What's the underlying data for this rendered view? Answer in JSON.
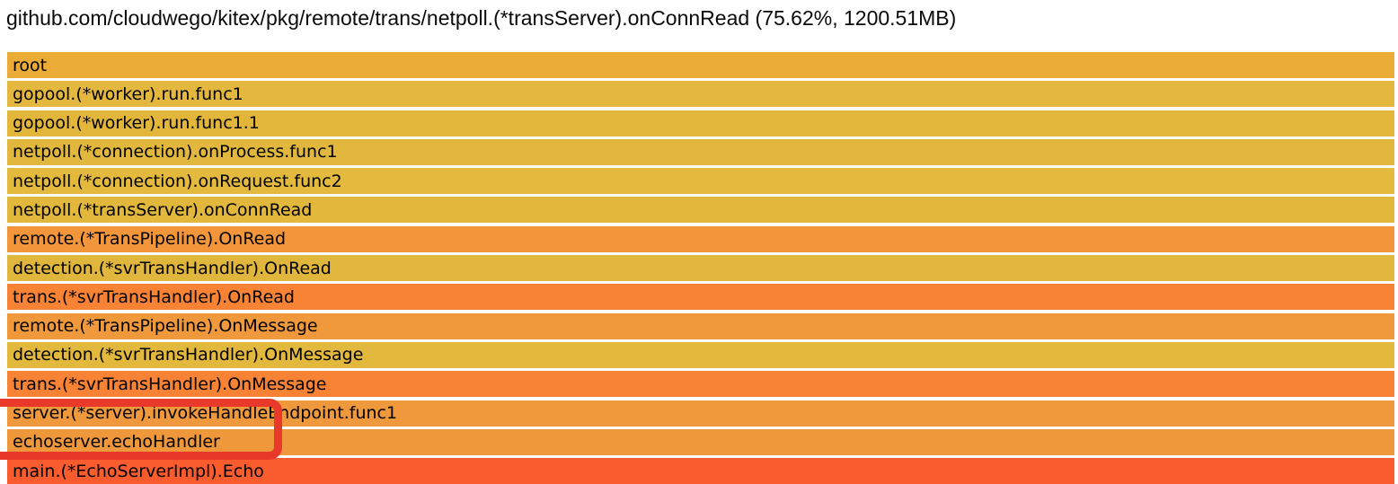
{
  "header": {
    "title": "github.com/cloudwego/kitex/pkg/remote/trans/netpoll.(*transServer).onConnRead (75.62%, 1200.51MB)"
  },
  "chart_data": {
    "type": "bar",
    "subtype": "flamegraph-icicle",
    "title": "github.com/cloudwego/kitex/pkg/remote/trans/netpoll.(*transServer).onConnRead (75.62%, 1200.51MB)",
    "selected_frame": {
      "name": "github.com/cloudwego/kitex/pkg/remote/trans/netpoll.(*transServer).onConnRead",
      "percent": 75.62,
      "value_mb": 1200.51
    },
    "orientation": "top-down stack, each frame spans full width",
    "categories": [
      "root",
      "gopool.(*worker).run.func1",
      "gopool.(*worker).run.func1.1",
      "netpoll.(*connection).onProcess.func1",
      "netpoll.(*connection).onRequest.func2",
      "netpoll.(*transServer).onConnRead",
      "remote.(*TransPipeline).OnRead",
      "detection.(*svrTransHandler).OnRead",
      "trans.(*svrTransHandler).OnRead",
      "remote.(*TransPipeline).OnMessage",
      "detection.(*svrTransHandler).OnMessage",
      "trans.(*svrTransHandler).OnMessage",
      "server.(*server).invokeHandleEndpoint.func1",
      "echoserver.echoHandler",
      "main.(*EchoServerImpl).Echo"
    ],
    "values": [
      100,
      100,
      100,
      100,
      100,
      100,
      100,
      100,
      100,
      100,
      100,
      100,
      100,
      100,
      100
    ]
  },
  "flamegraph": {
    "frames": [
      {
        "label": "root",
        "color": "#eaab37"
      },
      {
        "label": "gopool.(*worker).run.func1",
        "color": "#e4b83e"
      },
      {
        "label": "gopool.(*worker).run.func1.1",
        "color": "#e2b63b"
      },
      {
        "label": "netpoll.(*connection).onProcess.func1",
        "color": "#e1b83d"
      },
      {
        "label": "netpoll.(*connection).onRequest.func2",
        "color": "#e3b93e"
      },
      {
        "label": "netpoll.(*transServer).onConnRead",
        "color": "#e1b73c"
      },
      {
        "label": "remote.(*TransPipeline).OnRead",
        "color": "#f3963b"
      },
      {
        "label": "detection.(*svrTransHandler).OnRead",
        "color": "#e0b63c"
      },
      {
        "label": "trans.(*svrTransHandler).OnRead",
        "color": "#f98335"
      },
      {
        "label": "remote.(*TransPipeline).OnMessage",
        "color": "#f0993c"
      },
      {
        "label": "detection.(*svrTransHandler).OnMessage",
        "color": "#e2b83d"
      },
      {
        "label": "trans.(*svrTransHandler).OnMessage",
        "color": "#f98334"
      },
      {
        "label": "server.(*server).invokeHandleEndpoint.func1",
        "color": "#f0993c"
      },
      {
        "label": "echoserver.echoHandler",
        "color": "#ee973b"
      },
      {
        "label": "main.(*EchoServerImpl).Echo",
        "color": "#fb5c2e"
      }
    ]
  },
  "annotation": {
    "color": "#e8392b",
    "highlighted_frames": [
      "server.(*server).invokeHandleEndpoint.func1",
      "echoserver.echoHandler"
    ]
  }
}
